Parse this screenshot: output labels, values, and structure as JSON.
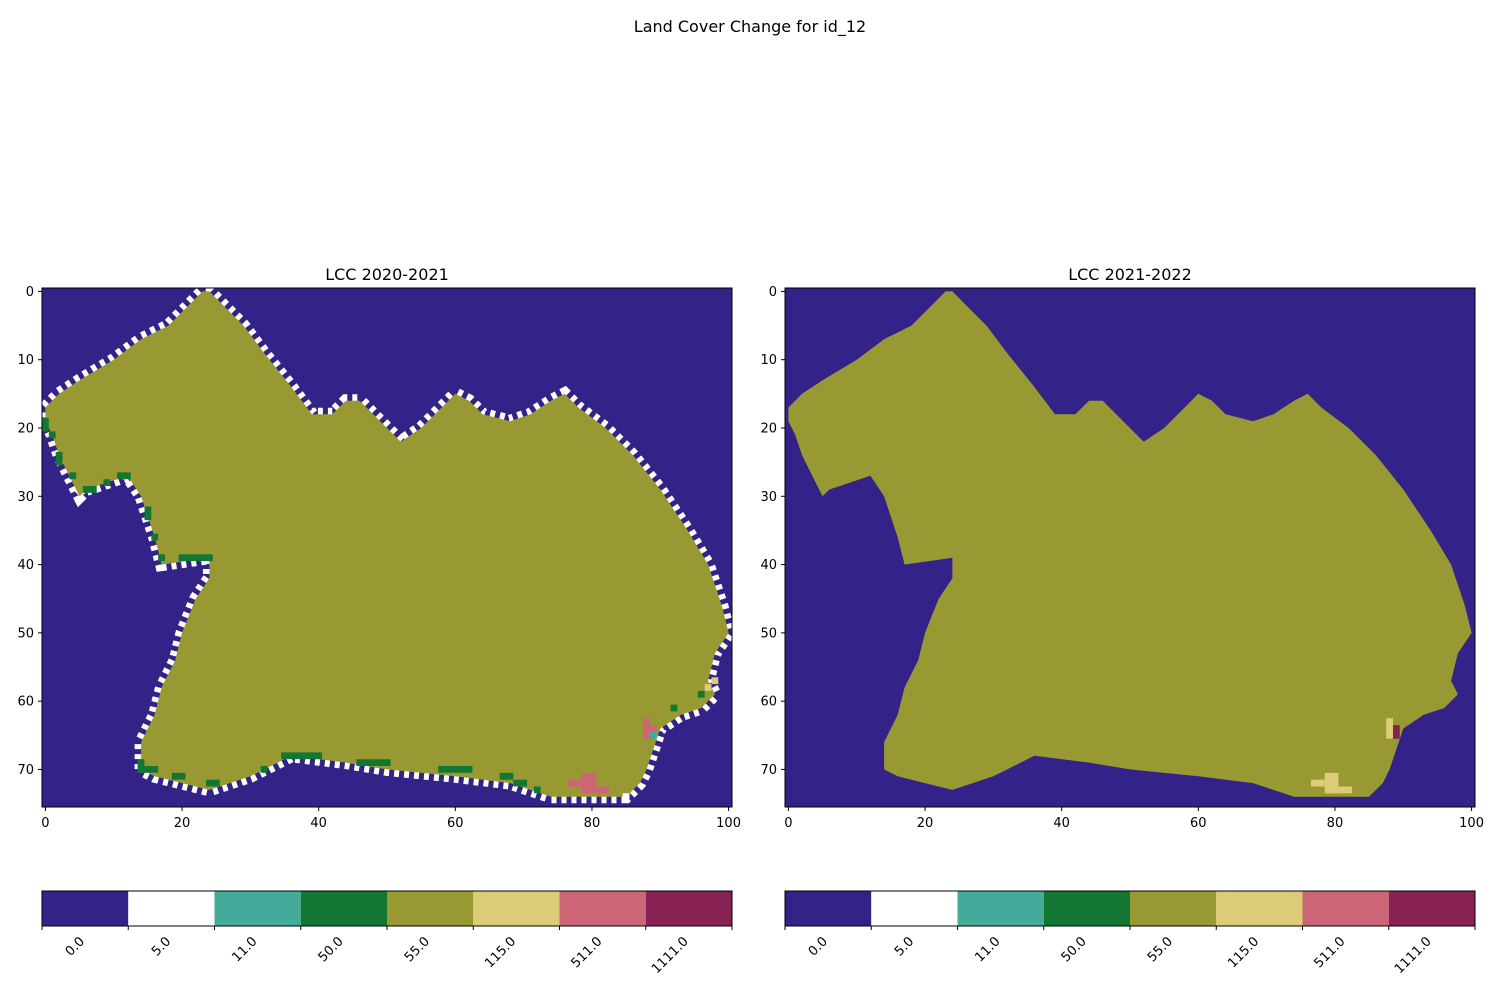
{
  "suptitle": "Land Cover Change for id_12",
  "colors": {
    "0.0": "#332288",
    "5.0": "#ffffff",
    "11.0": "#44aa99",
    "50.0": "#117733",
    "55.0": "#999933",
    "115.0": "#ddcc77",
    "511.0": "#cc6677",
    "1111.0": "#882255"
  },
  "chart_data": [
    {
      "type": "heatmap",
      "title": "LCC 2020-2021",
      "xlabel": "",
      "ylabel": "",
      "xlim": [
        -0.5,
        100.5
      ],
      "ylim": [
        75.5,
        -0.5
      ],
      "xticks": [
        0,
        20,
        40,
        60,
        80,
        100
      ],
      "yticks": [
        0,
        10,
        20,
        30,
        40,
        50,
        60,
        70
      ],
      "background_class": "0.0",
      "fill_class": "55.0",
      "boundary_class": "5.0",
      "colorbar": {
        "orientation": "horizontal",
        "labels": [
          "0.0",
          "5.0",
          "11.0",
          "50.0",
          "55.0",
          "115.0",
          "511.0",
          "1111.0"
        ]
      },
      "region_outline": [
        [
          0,
          17
        ],
        [
          2,
          15
        ],
        [
          5,
          13
        ],
        [
          10,
          10
        ],
        [
          14,
          7
        ],
        [
          18,
          5
        ],
        [
          21,
          2
        ],
        [
          23,
          0
        ],
        [
          24,
          0
        ],
        [
          26,
          2
        ],
        [
          29,
          5
        ],
        [
          32,
          9
        ],
        [
          36,
          14
        ],
        [
          39,
          18
        ],
        [
          42,
          18
        ],
        [
          44,
          16
        ],
        [
          46,
          16
        ],
        [
          49,
          19
        ],
        [
          52,
          22
        ],
        [
          55,
          20
        ],
        [
          58,
          17
        ],
        [
          60,
          15
        ],
        [
          62,
          16
        ],
        [
          64,
          18
        ],
        [
          68,
          19
        ],
        [
          71,
          18
        ],
        [
          74,
          16
        ],
        [
          76,
          15
        ],
        [
          78,
          17
        ],
        [
          82,
          20
        ],
        [
          86,
          24
        ],
        [
          90,
          29
        ],
        [
          94,
          35
        ],
        [
          97,
          40
        ],
        [
          99,
          46
        ],
        [
          100,
          50
        ],
        [
          98,
          53
        ],
        [
          97,
          57
        ],
        [
          98,
          59
        ],
        [
          96,
          61
        ],
        [
          93,
          62
        ],
        [
          90,
          64
        ],
        [
          89,
          67
        ],
        [
          88,
          70
        ],
        [
          87,
          72
        ],
        [
          85,
          74
        ],
        [
          80,
          74
        ],
        [
          74,
          74
        ],
        [
          68,
          72
        ],
        [
          60,
          71
        ],
        [
          50,
          70
        ],
        [
          44,
          69
        ],
        [
          36,
          68
        ],
        [
          30,
          71
        ],
        [
          24,
          73
        ],
        [
          20,
          72
        ],
        [
          16,
          71
        ],
        [
          14,
          70
        ],
        [
          14,
          66
        ],
        [
          16,
          62
        ],
        [
          17,
          58
        ],
        [
          19,
          54
        ],
        [
          20,
          50
        ],
        [
          22,
          45
        ],
        [
          24,
          42
        ],
        [
          24,
          39
        ],
        [
          17,
          40
        ],
        [
          16,
          36
        ],
        [
          15,
          33
        ],
        [
          14,
          30
        ],
        [
          12,
          27
        ],
        [
          9,
          28
        ],
        [
          6,
          29
        ],
        [
          5,
          30
        ],
        [
          4,
          28
        ],
        [
          3,
          26
        ],
        [
          2,
          24
        ],
        [
          1,
          21
        ],
        [
          0,
          19
        ]
      ],
      "cells": [
        {
          "class": "50.0",
          "row": 19,
          "col": 0,
          "w": 1,
          "h": 2
        },
        {
          "class": "50.0",
          "row": 21,
          "col": 1,
          "w": 1,
          "h": 1
        },
        {
          "class": "50.0",
          "row": 24,
          "col": 2,
          "w": 1,
          "h": 2
        },
        {
          "class": "50.0",
          "row": 27,
          "col": 4,
          "w": 1,
          "h": 1
        },
        {
          "class": "50.0",
          "row": 29,
          "col": 6,
          "w": 2,
          "h": 1
        },
        {
          "class": "50.0",
          "row": 28,
          "col": 9,
          "w": 1,
          "h": 1
        },
        {
          "class": "50.0",
          "row": 27,
          "col": 11,
          "w": 2,
          "h": 1
        },
        {
          "class": "50.0",
          "row": 32,
          "col": 15,
          "w": 1,
          "h": 2
        },
        {
          "class": "50.0",
          "row": 36,
          "col": 16,
          "w": 1,
          "h": 1
        },
        {
          "class": "50.0",
          "row": 39,
          "col": 17,
          "w": 1,
          "h": 1
        },
        {
          "class": "50.0",
          "row": 39,
          "col": 20,
          "w": 5,
          "h": 1
        },
        {
          "class": "50.0",
          "row": 69,
          "col": 14,
          "w": 1,
          "h": 2
        },
        {
          "class": "50.0",
          "row": 70,
          "col": 15,
          "w": 2,
          "h": 1
        },
        {
          "class": "50.0",
          "row": 71,
          "col": 19,
          "w": 2,
          "h": 1
        },
        {
          "class": "50.0",
          "row": 72,
          "col": 24,
          "w": 2,
          "h": 1
        },
        {
          "class": "50.0",
          "row": 70,
          "col": 32,
          "w": 1,
          "h": 1
        },
        {
          "class": "50.0",
          "row": 68,
          "col": 35,
          "w": 6,
          "h": 1
        },
        {
          "class": "50.0",
          "row": 69,
          "col": 46,
          "w": 5,
          "h": 1
        },
        {
          "class": "50.0",
          "row": 70,
          "col": 58,
          "w": 5,
          "h": 1
        },
        {
          "class": "50.0",
          "row": 71,
          "col": 67,
          "w": 2,
          "h": 1
        },
        {
          "class": "50.0",
          "row": 72,
          "col": 69,
          "w": 2,
          "h": 1
        },
        {
          "class": "50.0",
          "row": 73,
          "col": 72,
          "w": 1,
          "h": 1
        },
        {
          "class": "50.0",
          "row": 61,
          "col": 92,
          "w": 1,
          "h": 1
        },
        {
          "class": "50.0",
          "row": 59,
          "col": 96,
          "w": 1,
          "h": 1
        },
        {
          "class": "511.0",
          "row": 63,
          "col": 88,
          "w": 1,
          "h": 3
        },
        {
          "class": "511.0",
          "row": 64,
          "col": 89,
          "w": 1,
          "h": 1
        },
        {
          "class": "11.0",
          "row": 65,
          "col": 89,
          "w": 1,
          "h": 1
        },
        {
          "class": "511.0",
          "row": 71,
          "col": 79,
          "w": 2,
          "h": 3
        },
        {
          "class": "511.0",
          "row": 72,
          "col": 77,
          "w": 2,
          "h": 1
        },
        {
          "class": "511.0",
          "row": 73,
          "col": 81,
          "w": 2,
          "h": 1
        },
        {
          "class": "115.0",
          "row": 58,
          "col": 97,
          "w": 1,
          "h": 1
        },
        {
          "class": "115.0",
          "row": 57,
          "col": 98,
          "w": 1,
          "h": 1
        },
        {
          "class": "5.0",
          "row": 74,
          "col": 85,
          "w": 1,
          "h": 1
        }
      ]
    },
    {
      "type": "heatmap",
      "title": "LCC 2021-2022",
      "xlabel": "",
      "ylabel": "",
      "xlim": [
        -0.5,
        100.5
      ],
      "ylim": [
        75.5,
        -0.5
      ],
      "xticks": [
        0,
        20,
        40,
        60,
        80,
        100
      ],
      "yticks": [
        0,
        10,
        20,
        30,
        40,
        50,
        60,
        70
      ],
      "background_class": "0.0",
      "fill_class": "55.0",
      "boundary_class": "",
      "colorbar": {
        "orientation": "horizontal",
        "labels": [
          "0.0",
          "5.0",
          "11.0",
          "50.0",
          "55.0",
          "115.0",
          "511.0",
          "1111.0"
        ]
      },
      "region_outline": [
        [
          0,
          17
        ],
        [
          2,
          15
        ],
        [
          5,
          13
        ],
        [
          10,
          10
        ],
        [
          14,
          7
        ],
        [
          18,
          5
        ],
        [
          21,
          2
        ],
        [
          23,
          0
        ],
        [
          24,
          0
        ],
        [
          26,
          2
        ],
        [
          29,
          5
        ],
        [
          32,
          9
        ],
        [
          36,
          14
        ],
        [
          39,
          18
        ],
        [
          42,
          18
        ],
        [
          44,
          16
        ],
        [
          46,
          16
        ],
        [
          49,
          19
        ],
        [
          52,
          22
        ],
        [
          55,
          20
        ],
        [
          58,
          17
        ],
        [
          60,
          15
        ],
        [
          62,
          16
        ],
        [
          64,
          18
        ],
        [
          68,
          19
        ],
        [
          71,
          18
        ],
        [
          74,
          16
        ],
        [
          76,
          15
        ],
        [
          78,
          17
        ],
        [
          82,
          20
        ],
        [
          86,
          24
        ],
        [
          90,
          29
        ],
        [
          94,
          35
        ],
        [
          97,
          40
        ],
        [
          99,
          46
        ],
        [
          100,
          50
        ],
        [
          98,
          53
        ],
        [
          97,
          57
        ],
        [
          98,
          59
        ],
        [
          96,
          61
        ],
        [
          93,
          62
        ],
        [
          90,
          64
        ],
        [
          89,
          67
        ],
        [
          88,
          70
        ],
        [
          87,
          72
        ],
        [
          85,
          74
        ],
        [
          80,
          74
        ],
        [
          74,
          74
        ],
        [
          68,
          72
        ],
        [
          60,
          71
        ],
        [
          50,
          70
        ],
        [
          44,
          69
        ],
        [
          36,
          68
        ],
        [
          30,
          71
        ],
        [
          24,
          73
        ],
        [
          20,
          72
        ],
        [
          16,
          71
        ],
        [
          14,
          70
        ],
        [
          14,
          66
        ],
        [
          16,
          62
        ],
        [
          17,
          58
        ],
        [
          19,
          54
        ],
        [
          20,
          50
        ],
        [
          22,
          45
        ],
        [
          24,
          42
        ],
        [
          24,
          39
        ],
        [
          17,
          40
        ],
        [
          16,
          36
        ],
        [
          15,
          33
        ],
        [
          14,
          30
        ],
        [
          12,
          27
        ],
        [
          9,
          28
        ],
        [
          6,
          29
        ],
        [
          5,
          30
        ],
        [
          4,
          28
        ],
        [
          3,
          26
        ],
        [
          2,
          24
        ],
        [
          1,
          21
        ],
        [
          0,
          19
        ]
      ],
      "cells": [
        {
          "class": "115.0",
          "row": 63,
          "col": 88,
          "w": 1,
          "h": 3
        },
        {
          "class": "1111.0",
          "row": 64,
          "col": 89,
          "w": 1,
          "h": 2
        },
        {
          "class": "115.0",
          "row": 71,
          "col": 79,
          "w": 2,
          "h": 3
        },
        {
          "class": "115.0",
          "row": 72,
          "col": 77,
          "w": 2,
          "h": 1
        },
        {
          "class": "115.0",
          "row": 73,
          "col": 81,
          "w": 2,
          "h": 1
        }
      ]
    }
  ]
}
